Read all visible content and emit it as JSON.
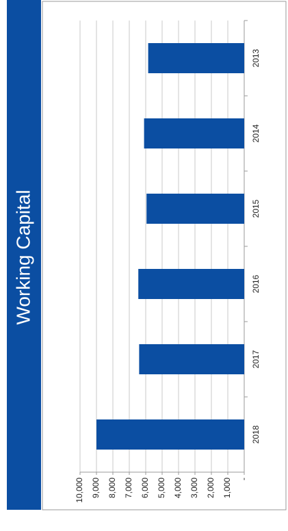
{
  "chart_data": {
    "type": "bar",
    "title": "Working Capital",
    "categories": [
      "2018",
      "2017",
      "2016",
      "2015",
      "2014",
      "2013"
    ],
    "values": [
      9000,
      6400,
      6450,
      5950,
      6100,
      5850
    ],
    "color": "#0b4ea2",
    "ylim": [
      0,
      10000
    ],
    "yticks": [
      {
        "value": 0,
        "label": "-"
      },
      {
        "value": 1000,
        "label": "1,000"
      },
      {
        "value": 2000,
        "label": "2,000"
      },
      {
        "value": 3000,
        "label": "3,000"
      },
      {
        "value": 4000,
        "label": "4,000"
      },
      {
        "value": 5000,
        "label": "5,000"
      },
      {
        "value": 6000,
        "label": "6,000"
      },
      {
        "value": 7000,
        "label": "7,000"
      },
      {
        "value": 8000,
        "label": "8,000"
      },
      {
        "value": 9000,
        "label": "9,000"
      },
      {
        "value": 10000,
        "label": "10,000"
      }
    ],
    "grid": true
  }
}
